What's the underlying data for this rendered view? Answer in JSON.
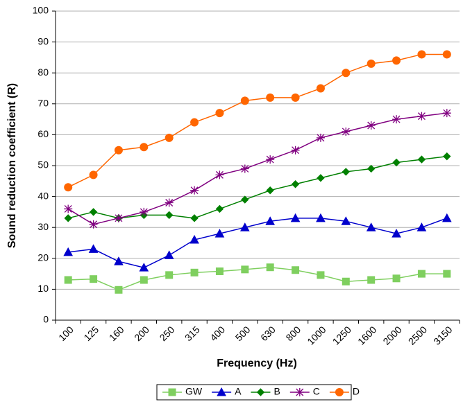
{
  "chart_data": {
    "type": "line",
    "x_label": "Frequency (Hz)",
    "y_label": "Sound reduction coefficient (R)",
    "categories": [
      "100",
      "125",
      "160",
      "200",
      "250",
      "315",
      "400",
      "500",
      "630",
      "800",
      "1000",
      "1250",
      "1600",
      "2000",
      "2500",
      "3150"
    ],
    "series": [
      {
        "name": "GW",
        "color": "#7fcf5f",
        "marker": "square",
        "values": [
          13,
          13.3,
          9.8,
          13,
          14.6,
          15.4,
          15.8,
          16.4,
          17.1,
          16.2,
          14.6,
          12.5,
          13,
          13.5,
          15,
          15
        ]
      },
      {
        "name": "A",
        "color": "#0000cc",
        "marker": "triangle",
        "values": [
          22,
          23,
          19,
          17,
          21,
          26,
          28,
          30,
          32,
          33,
          33,
          32,
          30,
          28,
          30,
          33
        ]
      },
      {
        "name": "B",
        "color": "#008000",
        "marker": "diamond",
        "values": [
          33,
          35,
          33,
          34,
          34,
          33,
          36,
          39,
          42,
          44,
          46,
          48,
          49,
          51,
          52,
          53
        ]
      },
      {
        "name": "C",
        "color": "#800080",
        "marker": "star",
        "values": [
          36,
          31,
          33,
          35,
          38,
          42,
          47,
          49,
          52,
          55,
          59,
          61,
          63,
          65,
          66,
          67
        ]
      },
      {
        "name": "D",
        "color": "#ff6600",
        "marker": "circle",
        "values": [
          43,
          47,
          55,
          56,
          59,
          64,
          67,
          71,
          72,
          72,
          75,
          80,
          83,
          84,
          86,
          86
        ]
      }
    ],
    "ylim": [
      0,
      100
    ],
    "yticks": [
      0,
      10,
      20,
      30,
      40,
      50,
      60,
      70,
      80,
      90,
      100
    ],
    "grid": true
  }
}
